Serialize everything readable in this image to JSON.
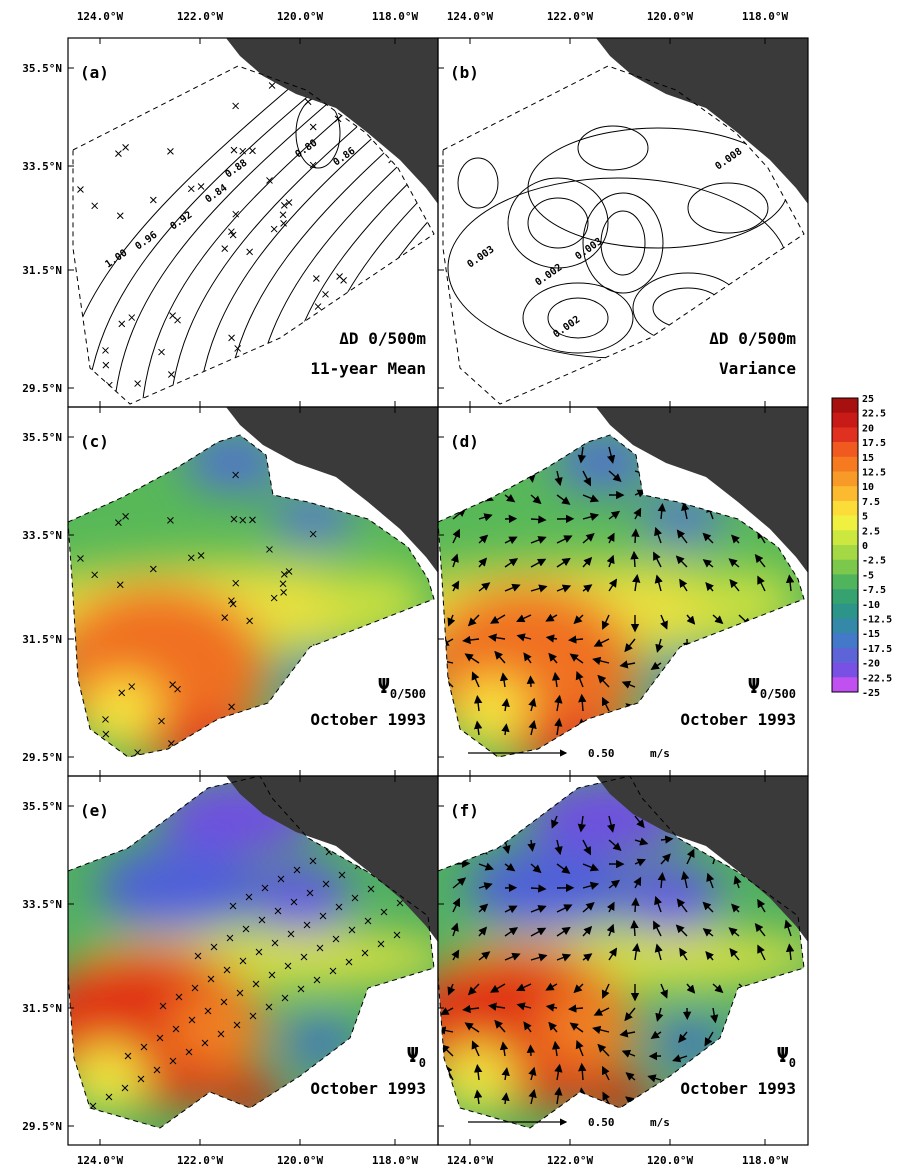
{
  "lon_labels": [
    "124.0°W",
    "122.0°W",
    "120.0°W",
    "118.0°W"
  ],
  "lat_labels": [
    "35.5°N",
    "33.5°N",
    "31.5°N",
    "29.5°N"
  ],
  "panels": [
    {
      "tag": "(a)",
      "line1": "ΔD 0/500m",
      "line2": "11-year Mean",
      "contour_labels": [
        "0.80",
        "0.86",
        "0.88",
        "0.84",
        "0.92",
        "0.96",
        "1.00"
      ]
    },
    {
      "tag": "(b)",
      "line1": "ΔD 0/500m",
      "line2": "Variance",
      "contour_labels": [
        "0.008",
        "0.003",
        "0.002",
        "0.003",
        "0.002"
      ]
    },
    {
      "tag": "(c)",
      "symbol": "Ψ",
      "subscript": "0/500",
      "line2": "October 1993"
    },
    {
      "tag": "(d)",
      "symbol": "Ψ",
      "subscript": "0/500",
      "line2": "October 1993",
      "scale": "0.50",
      "unit": "m/s"
    },
    {
      "tag": "(e)",
      "symbol": "Ψ",
      "subscript": "0",
      "line2": "October 1993"
    },
    {
      "tag": "(f)",
      "symbol": "Ψ",
      "subscript": "0",
      "line2": "October 1993",
      "scale": "0.50",
      "unit": "m/s"
    }
  ],
  "colorbar": {
    "labels": [
      "25",
      "22.5",
      "20",
      "17.5",
      "15",
      "12.5",
      "10",
      "7.5",
      "5",
      "2.5",
      "0",
      "-2.5",
      "-5",
      "-7.5",
      "-10",
      "-12.5",
      "-15",
      "-17.5",
      "-20",
      "-22.5",
      "-25"
    ],
    "colors": [
      "#a8100f",
      "#c81a16",
      "#e03020",
      "#f05a20",
      "#f57a20",
      "#f89a28",
      "#fbba30",
      "#fcdc38",
      "#f0f040",
      "#cce840",
      "#a4d844",
      "#7cc84c",
      "#50b45c",
      "#36a270",
      "#2c9488",
      "#3488a8",
      "#4478c8",
      "#5c64d8",
      "#7850e4",
      "#c050f0"
    ]
  }
}
